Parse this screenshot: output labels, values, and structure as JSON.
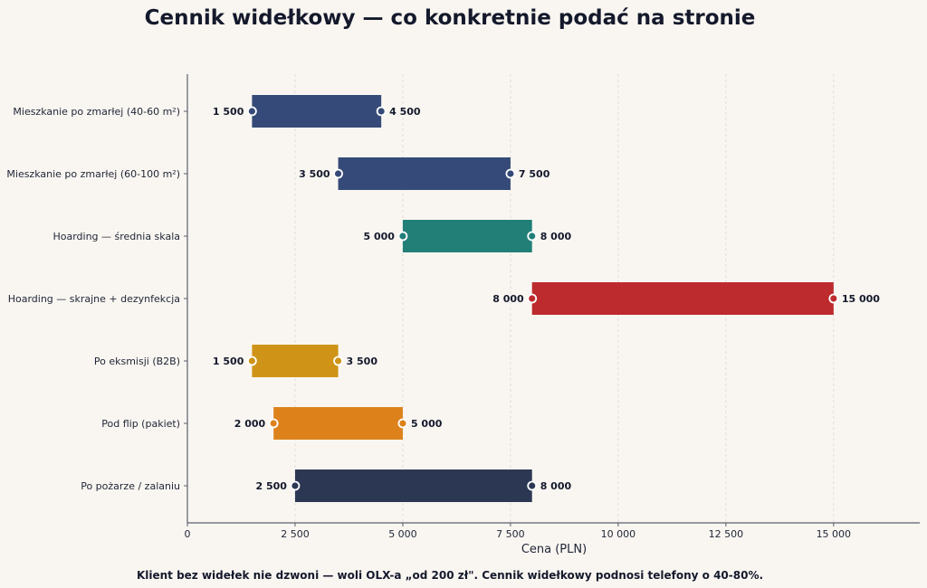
{
  "chart_data": {
    "type": "bar",
    "orientation": "horizontal-range",
    "title": "Cennik widełkowy — co konkretnie podać na stronie",
    "xlabel": "Cena (PLN)",
    "ylabel": "",
    "xlim": [
      0,
      17000
    ],
    "xticks": [
      0,
      2500,
      5000,
      7500,
      10000,
      12500,
      15000
    ],
    "xtick_labels": [
      "0",
      "2 500",
      "5 000",
      "7 500",
      "10 000",
      "12 500",
      "15 000"
    ],
    "grid": true,
    "categories": [
      "Mieszkanie po zmarłej (40-60 m²)",
      "Mieszkanie po zmarłej (60-100 m²)",
      "Hoarding — średnia skala",
      "Hoarding — skrajne + dezynfekcja",
      "Po eksmisji (B2B)",
      "Pod flip (pakiet)",
      "Po pożarze / zalaniu"
    ],
    "ranges": [
      {
        "min": 1500,
        "max": 4500,
        "min_label": "1 500",
        "max_label": "4 500",
        "color": "#354a78"
      },
      {
        "min": 3500,
        "max": 7500,
        "min_label": "3 500",
        "max_label": "7 500",
        "color": "#354a78"
      },
      {
        "min": 5000,
        "max": 8000,
        "min_label": "5 000",
        "max_label": "8 000",
        "color": "#217f78"
      },
      {
        "min": 8000,
        "max": 15000,
        "min_label": "8 000",
        "max_label": "15 000",
        "color": "#be2b2e"
      },
      {
        "min": 1500,
        "max": 3500,
        "min_label": "1 500",
        "max_label": "3 500",
        "color": "#cf9417"
      },
      {
        "min": 2000,
        "max": 5000,
        "min_label": "2 000",
        "max_label": "5 000",
        "color": "#dd821b"
      },
      {
        "min": 2500,
        "max": 8000,
        "min_label": "2 500",
        "max_label": "8 000",
        "color": "#2c3853"
      }
    ],
    "footnote": "Klient bez widełek nie dzwoni — woli OLX-a „od 200 zł\". Cennik widełkowy podnosi telefony o 40-80%."
  }
}
